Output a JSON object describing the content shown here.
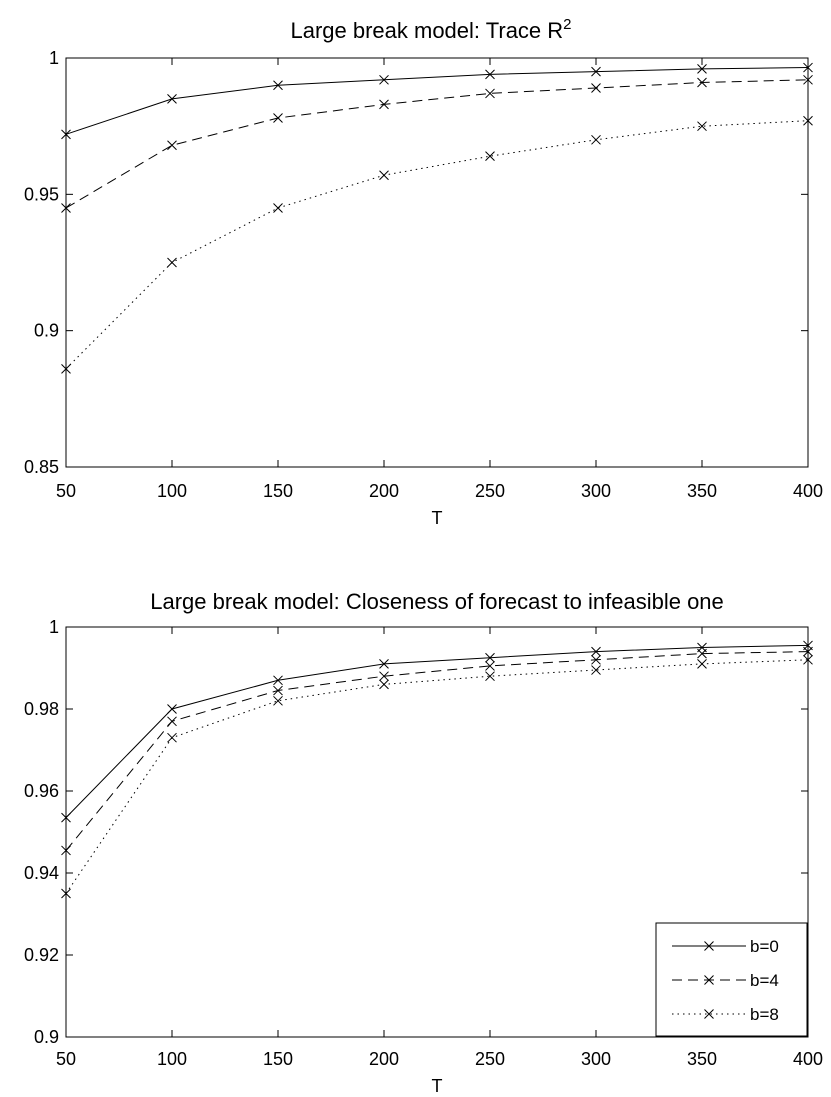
{
  "chart_data": [
    {
      "type": "line",
      "title": "Large break model: Trace R",
      "title_superscript": "2",
      "xlabel": "T",
      "ylabel": "",
      "x": [
        50,
        100,
        150,
        200,
        250,
        300,
        350,
        400
      ],
      "xlim": [
        50,
        400
      ],
      "ylim": [
        0.85,
        1
      ],
      "xticks": [
        "50",
        "100",
        "150",
        "200",
        "250",
        "300",
        "350",
        "400"
      ],
      "yticks": [
        "0.85",
        "0.9",
        "0.95",
        "1"
      ],
      "grid": false,
      "legend": null,
      "series": [
        {
          "name": "b=0",
          "style": "solid",
          "marker": "x",
          "values": [
            0.972,
            0.985,
            0.99,
            0.992,
            0.994,
            0.995,
            0.996,
            0.9965
          ]
        },
        {
          "name": "b=4",
          "style": "dashed",
          "marker": "x",
          "values": [
            0.945,
            0.968,
            0.978,
            0.983,
            0.987,
            0.989,
            0.991,
            0.992
          ]
        },
        {
          "name": "b=8",
          "style": "dotted",
          "marker": "x",
          "values": [
            0.886,
            0.925,
            0.945,
            0.957,
            0.964,
            0.97,
            0.975,
            0.977
          ]
        }
      ]
    },
    {
      "type": "line",
      "title": "Large break model: Closeness of forecast to infeasible one",
      "xlabel": "T",
      "ylabel": "",
      "x": [
        50,
        100,
        150,
        200,
        250,
        300,
        350,
        400
      ],
      "xlim": [
        50,
        400
      ],
      "ylim": [
        0.9,
        1
      ],
      "xticks": [
        "50",
        "100",
        "150",
        "200",
        "250",
        "300",
        "350",
        "400"
      ],
      "yticks": [
        "0.9",
        "0.92",
        "0.94",
        "0.96",
        "0.98",
        "1"
      ],
      "grid": false,
      "legend": "bottom-right",
      "series": [
        {
          "name": "b=0",
          "style": "solid",
          "marker": "x",
          "values": [
            0.9535,
            0.98,
            0.987,
            0.991,
            0.9925,
            0.994,
            0.995,
            0.9955
          ]
        },
        {
          "name": "b=4",
          "style": "dashed",
          "marker": "x",
          "values": [
            0.9455,
            0.977,
            0.9845,
            0.988,
            0.9905,
            0.992,
            0.9935,
            0.994
          ]
        },
        {
          "name": "b=8",
          "style": "dotted",
          "marker": "x",
          "values": [
            0.935,
            0.973,
            0.982,
            0.986,
            0.988,
            0.9895,
            0.991,
            0.992
          ]
        }
      ]
    }
  ]
}
